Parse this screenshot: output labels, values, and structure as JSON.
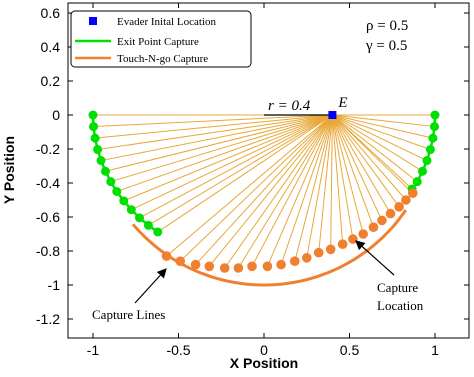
{
  "chart_data": {
    "type": "scatter",
    "xlabel": "X Position",
    "ylabel": "Y Position",
    "xlim": [
      -1.1,
      1.1
    ],
    "ylim": [
      -1.25,
      0.62
    ],
    "xticks": [
      "-1",
      "-0.5",
      "0",
      "0.5",
      "1"
    ],
    "yticks": [
      "0.6",
      "0.4",
      "0.2",
      "0",
      "-0.2",
      "-0.4",
      "-0.6",
      "-0.8",
      "-1",
      "-1.2"
    ],
    "grid": false,
    "legend": {
      "placement": "top-left",
      "entries": [
        {
          "label": "Evader Inital Location",
          "color": "#0000ff",
          "marker": "square"
        },
        {
          "label": "Exit Point Capture",
          "color": "#00e000",
          "marker": "line"
        },
        {
          "label": "Touch-N-go Capture",
          "color": "#f08030",
          "marker": "line"
        }
      ]
    },
    "params": [
      "ρ = 0.5",
      "γ = 0.5"
    ],
    "evader": {
      "x": 0.4,
      "y": 0.0,
      "label": "E",
      "color": "#0000ff"
    },
    "radius_label": "r = 0.4",
    "annotations": [
      {
        "text": "Capture Lines",
        "x": -0.72,
        "y": -1.17
      },
      {
        "text_lines": [
          "Capture",
          "Location"
        ],
        "x": 0.67,
        "y": -1.02
      }
    ],
    "series": [
      {
        "name": "Exit Point Capture",
        "color": "#00e000",
        "points": [
          [
            -1.0,
            0.0
          ],
          [
            -0.997,
            -0.068
          ],
          [
            -0.988,
            -0.136
          ],
          [
            -0.973,
            -0.203
          ],
          [
            -0.953,
            -0.268
          ],
          [
            -0.927,
            -0.331
          ],
          [
            -0.896,
            -0.392
          ],
          [
            -0.861,
            -0.45
          ],
          [
            -0.82,
            -0.505
          ],
          [
            -0.776,
            -0.557
          ],
          [
            -0.728,
            -0.605
          ],
          [
            -0.676,
            -0.649
          ],
          [
            -0.621,
            -0.688
          ],
          [
            1.0,
            0.0
          ],
          [
            0.997,
            -0.068
          ],
          [
            0.988,
            -0.136
          ],
          [
            0.973,
            -0.203
          ],
          [
            0.953,
            -0.268
          ],
          [
            0.927,
            -0.331
          ],
          [
            0.896,
            -0.392
          ],
          [
            0.866,
            -0.435
          ]
        ]
      },
      {
        "name": "Touch-N-go Capture",
        "color": "#f08030",
        "points": [
          [
            -0.57,
            -0.83
          ],
          [
            -0.49,
            -0.86
          ],
          [
            -0.4,
            -0.88
          ],
          [
            -0.32,
            -0.89
          ],
          [
            -0.23,
            -0.9
          ],
          [
            -0.15,
            -0.9
          ],
          [
            -0.07,
            -0.89
          ],
          [
            0.02,
            -0.89
          ],
          [
            0.1,
            -0.88
          ],
          [
            0.18,
            -0.86
          ],
          [
            0.25,
            -0.84
          ],
          [
            0.32,
            -0.81
          ],
          [
            0.39,
            -0.79
          ],
          [
            0.46,
            -0.76
          ],
          [
            0.52,
            -0.73
          ],
          [
            0.58,
            -0.7
          ],
          [
            0.64,
            -0.66
          ],
          [
            0.69,
            -0.62
          ],
          [
            0.74,
            -0.58
          ],
          [
            0.79,
            -0.54
          ],
          [
            0.83,
            -0.5
          ],
          [
            0.87,
            -0.46
          ]
        ]
      }
    ]
  }
}
